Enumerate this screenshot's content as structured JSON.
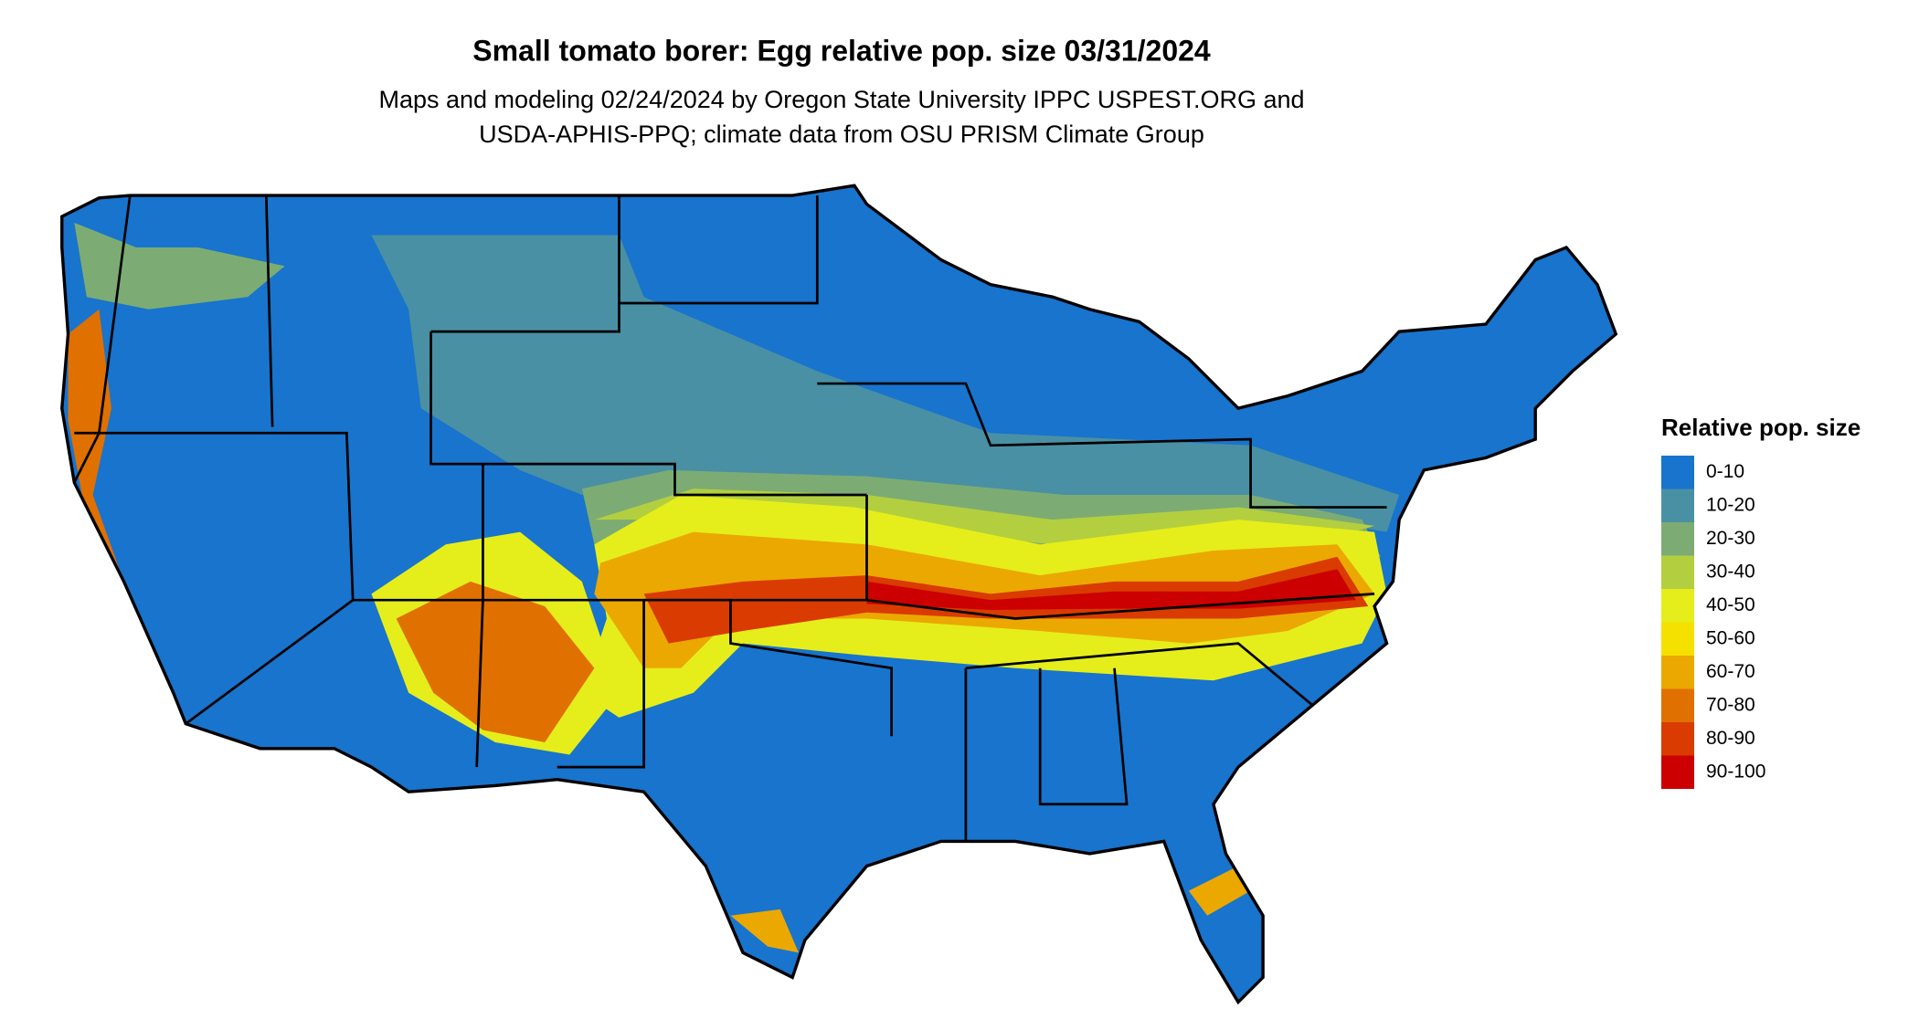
{
  "title": "Small tomato borer: Egg relative pop. size 03/31/2024",
  "subtitle": [
    "Maps and modeling 02/24/2024 by Oregon State University IPPC USPEST.ORG and",
    "USDA-APHIS-PPQ; climate data from OSU PRISM Climate Group"
  ],
  "legend": {
    "title": "Relative pop. size",
    "items": [
      {
        "label": "0-10",
        "color": "#1874cd"
      },
      {
        "label": "10-20",
        "color": "#4a90a4"
      },
      {
        "label": "20-30",
        "color": "#7cac73"
      },
      {
        "label": "30-40",
        "color": "#b3cf3f"
      },
      {
        "label": "40-50",
        "color": "#e5ee1a"
      },
      {
        "label": "50-60",
        "color": "#f5e100"
      },
      {
        "label": "60-70",
        "color": "#eba800"
      },
      {
        "label": "70-80",
        "color": "#e07000"
      },
      {
        "label": "80-90",
        "color": "#d93b00"
      },
      {
        "label": "90-100",
        "color": "#cc0000"
      }
    ]
  }
}
